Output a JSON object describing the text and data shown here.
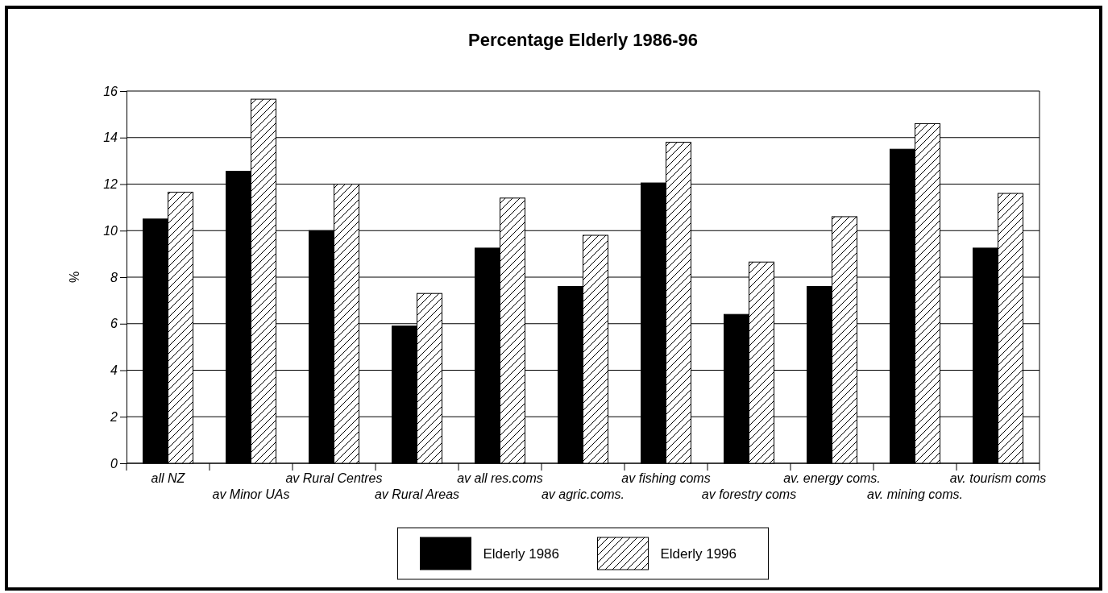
{
  "chart_data": {
    "type": "bar",
    "title": "Percentage Elderly 1986-96",
    "ylabel": "%",
    "categories": [
      "all NZ",
      "av Minor UAs",
      "av Rural Centres",
      "av Rural Areas",
      "av all res.coms",
      "av agric.coms.",
      "av fishing coms",
      "av forestry coms",
      "av. energy coms.",
      "av. mining coms.",
      "av. tourism coms"
    ],
    "series": [
      {
        "name": "Elderly 1986",
        "color": "#000000",
        "values": [
          10.5,
          12.55,
          10.0,
          5.9,
          9.25,
          7.6,
          12.05,
          6.4,
          7.6,
          13.5,
          9.25
        ]
      },
      {
        "name": "Elderly 1996",
        "color": "#000000",
        "values": [
          11.65,
          15.65,
          12.0,
          7.3,
          11.4,
          9.8,
          13.8,
          8.65,
          10.6,
          14.6,
          11.6
        ]
      }
    ],
    "ylim": [
      0,
      16
    ],
    "yticks": [
      0,
      2,
      4,
      6,
      8,
      10,
      12,
      14,
      16
    ],
    "grid": "y",
    "legend": "bottom"
  }
}
